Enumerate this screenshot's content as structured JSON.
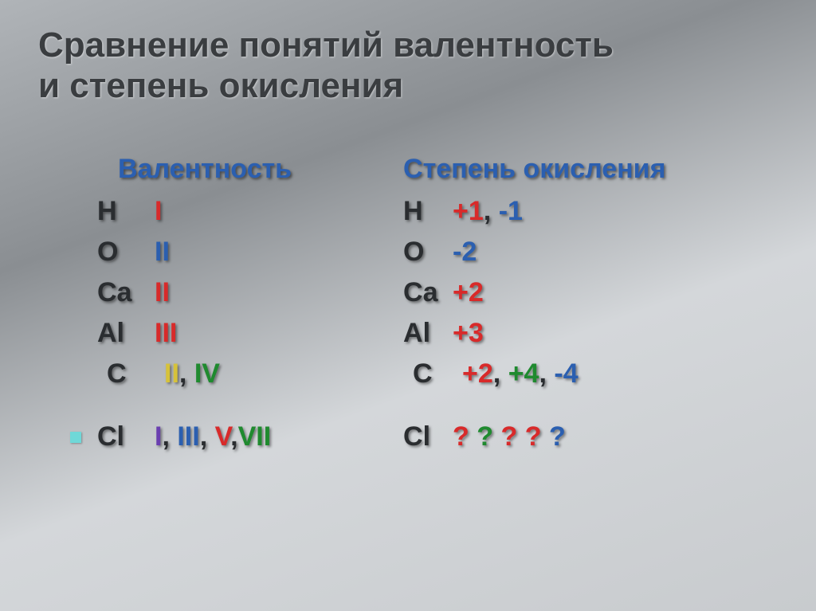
{
  "title_line1": "Сравнение понятий валентность",
  "title_line2": "и степень окисления",
  "left": {
    "header": "Валентность",
    "rows": [
      {
        "elem": "H",
        "vals": [
          {
            "t": "I",
            "c": "red"
          }
        ]
      },
      {
        "elem": "O",
        "vals": [
          {
            "t": "II",
            "c": "blue"
          }
        ]
      },
      {
        "elem": "Ca",
        "vals": [
          {
            "t": "II",
            "c": "red"
          }
        ]
      },
      {
        "elem": "Al",
        "vals": [
          {
            "t": "III",
            "c": "red"
          }
        ]
      },
      {
        "elem": "C",
        "vals": [
          {
            "t": "II",
            "c": "yellow"
          },
          {
            "t": ", ",
            "c": "dark"
          },
          {
            "t": "IV",
            "c": "green"
          }
        ],
        "indent": true
      }
    ],
    "bullet": {
      "elem": "Cl",
      "vals": [
        {
          "t": "I",
          "c": "purple"
        },
        {
          "t": ", ",
          "c": "dark"
        },
        {
          "t": "III",
          "c": "blue"
        },
        {
          "t": ", ",
          "c": "dark"
        },
        {
          "t": "V",
          "c": "red"
        },
        {
          "t": ",",
          "c": "dark"
        },
        {
          "t": "VII",
          "c": "green"
        }
      ]
    }
  },
  "right": {
    "header": "Степень окисления",
    "rows": [
      {
        "elem": "H",
        "vals": [
          {
            "t": "+1",
            "c": "red"
          },
          {
            "t": ", ",
            "c": "dark"
          },
          {
            "t": "-1",
            "c": "blue"
          }
        ]
      },
      {
        "elem": "O",
        "vals": [
          {
            "t": "-2",
            "c": "blue"
          }
        ]
      },
      {
        "elem": "Ca",
        "vals": [
          {
            "t": "+2",
            "c": "red"
          }
        ]
      },
      {
        "elem": "Al",
        "vals": [
          {
            "t": "+3",
            "c": "red"
          }
        ]
      },
      {
        "elem": "C",
        "vals": [
          {
            "t": "+2",
            "c": "red"
          },
          {
            "t": ", ",
            "c": "dark"
          },
          {
            "t": "+4",
            "c": "green"
          },
          {
            "t": ", ",
            "c": "dark"
          },
          {
            "t": "-4",
            "c": "blue"
          }
        ],
        "indent": true
      }
    ],
    "bullet": {
      "elem": "Cl",
      "vals": [
        {
          "t": "?",
          "c": "red"
        },
        {
          "t": " ",
          "c": "dark"
        },
        {
          "t": "?",
          "c": "green"
        },
        {
          "t": " ",
          "c": "dark"
        },
        {
          "t": "?",
          "c": "red"
        },
        {
          "t": " ",
          "c": "dark"
        },
        {
          "t": "?",
          "c": "red"
        },
        {
          "t": " ",
          "c": "dark"
        },
        {
          "t": "?",
          "c": "blue"
        }
      ]
    }
  }
}
